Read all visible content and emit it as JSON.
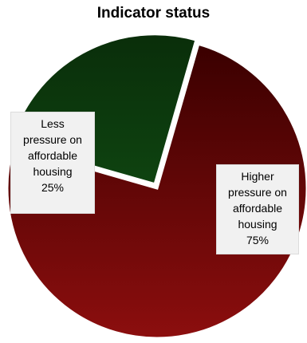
{
  "chart_data": {
    "type": "pie",
    "title": "Indicator status",
    "slices": [
      {
        "name": "Higher pressure on affordable housing",
        "label_lines": [
          "Higher",
          "pressure on",
          "affordable",
          "housing"
        ],
        "value": 75,
        "value_label": "75%",
        "color": "#8a0f0f"
      },
      {
        "name": "Less pressure on affordable housing",
        "label_lines": [
          "Less",
          "pressure on",
          "affordable",
          "housing"
        ],
        "value": 25,
        "value_label": "25%",
        "color": "#0d3a0d"
      }
    ]
  }
}
